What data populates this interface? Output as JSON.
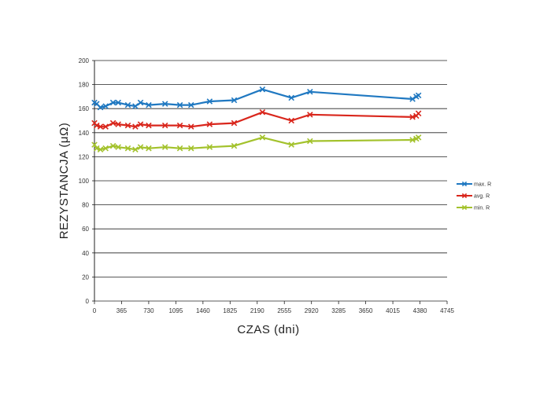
{
  "chart_data": {
    "type": "line",
    "xlabel": "CZAS (dni)",
    "ylabel": "REZYSTANCJA (μΩ)",
    "xlim": [
      0,
      4745
    ],
    "ylim": [
      0,
      200
    ],
    "xticks": [
      0,
      365,
      730,
      1095,
      1460,
      1825,
      2190,
      2555,
      2920,
      3285,
      3650,
      4015,
      4380,
      4745
    ],
    "yticks": [
      0,
      20,
      40,
      60,
      80,
      100,
      120,
      140,
      160,
      180,
      200
    ],
    "grid": "horizontal",
    "legend_position": "right",
    "series": [
      {
        "name": "max. R",
        "color": "#1f78c1",
        "marker": "x",
        "points": [
          [
            0,
            165
          ],
          [
            30,
            164
          ],
          [
            80,
            161
          ],
          [
            150,
            162
          ],
          [
            250,
            165
          ],
          [
            320,
            165
          ],
          [
            450,
            163
          ],
          [
            550,
            162
          ],
          [
            620,
            165
          ],
          [
            730,
            163
          ],
          [
            950,
            164
          ],
          [
            1150,
            163
          ],
          [
            1300,
            163
          ],
          [
            1550,
            166
          ],
          [
            1880,
            167
          ],
          [
            2260,
            176
          ],
          [
            2650,
            169
          ],
          [
            2900,
            174
          ],
          [
            4280,
            168
          ],
          [
            4330,
            170
          ],
          [
            4360,
            171
          ]
        ]
      },
      {
        "name": "avg. R",
        "color": "#d9261c",
        "marker": "x",
        "points": [
          [
            0,
            148
          ],
          [
            30,
            146
          ],
          [
            80,
            145
          ],
          [
            150,
            145
          ],
          [
            250,
            148
          ],
          [
            320,
            147
          ],
          [
            450,
            146
          ],
          [
            550,
            145
          ],
          [
            620,
            147
          ],
          [
            730,
            146
          ],
          [
            950,
            146
          ],
          [
            1150,
            146
          ],
          [
            1300,
            145
          ],
          [
            1550,
            147
          ],
          [
            1880,
            148
          ],
          [
            2260,
            157
          ],
          [
            2650,
            150
          ],
          [
            2900,
            155
          ],
          [
            4280,
            153
          ],
          [
            4330,
            154
          ],
          [
            4360,
            156
          ]
        ]
      },
      {
        "name": "min. R",
        "color": "#a3c22c",
        "marker": "x",
        "points": [
          [
            0,
            130
          ],
          [
            30,
            127
          ],
          [
            80,
            126
          ],
          [
            150,
            127
          ],
          [
            250,
            129
          ],
          [
            320,
            128
          ],
          [
            450,
            127
          ],
          [
            550,
            126
          ],
          [
            620,
            128
          ],
          [
            730,
            127
          ],
          [
            950,
            128
          ],
          [
            1150,
            127
          ],
          [
            1300,
            127
          ],
          [
            1550,
            128
          ],
          [
            1880,
            129
          ],
          [
            2260,
            136
          ],
          [
            2650,
            130
          ],
          [
            2900,
            133
          ],
          [
            4280,
            134
          ],
          [
            4330,
            135
          ],
          [
            4360,
            136
          ]
        ]
      }
    ]
  }
}
